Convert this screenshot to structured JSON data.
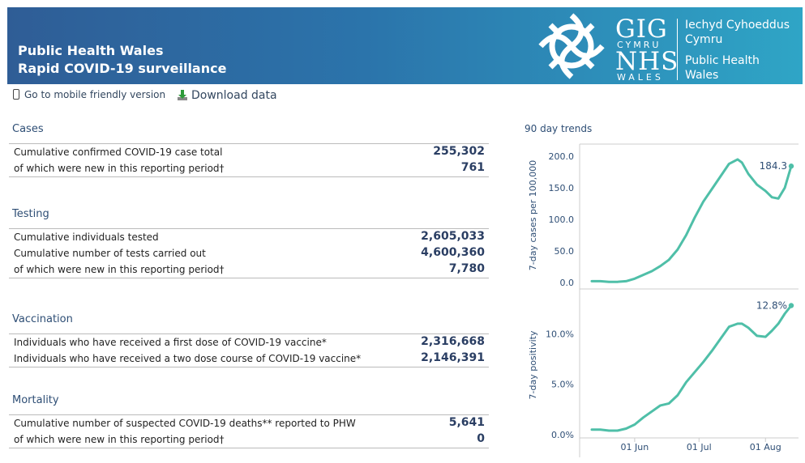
{
  "header": {
    "line1": "Public Health Wales",
    "line2": "Rapid COVID-19 surveillance",
    "logo": {
      "gig": "GIG",
      "cymru": "CYMRU",
      "nhs": "NHS",
      "wales": "WALES",
      "org_lines": [
        "Iechyd Cyhoeddus",
        "Cymru",
        "Public Health",
        "Wales"
      ]
    },
    "colors": {
      "banner_start": "#2f5d96",
      "banner_end": "#2fa5c6"
    }
  },
  "toolbar": {
    "mobile_link": "Go to mobile friendly version",
    "download_link": "Download data",
    "icons": [
      "mobile-phone-icon",
      "download-icon"
    ]
  },
  "sections": [
    {
      "title": "Cases",
      "rows": [
        {
          "label": "Cumulative confirmed COVID-19 case total",
          "value": "255,302"
        },
        {
          "label": "of which were new in this reporting period†",
          "value": "761"
        }
      ]
    },
    {
      "title": "Testing",
      "rows": [
        {
          "label": "Cumulative individuals tested",
          "value": "2,605,033"
        },
        {
          "label": "Cumulative number of tests carried out",
          "value": "4,600,360"
        },
        {
          "label": "of which were new in this reporting period†",
          "value": "7,780"
        }
      ]
    },
    {
      "title": "Vaccination",
      "rows": [
        {
          "label": "Individuals who have received a first dose of COVID-19 vaccine*",
          "value": "2,316,668"
        },
        {
          "label": "Individuals who have received a two dose course of COVID-19 vaccine*",
          "value": "2,146,391"
        }
      ]
    },
    {
      "title": "Mortality",
      "rows": [
        {
          "label": "Cumulative number of suspected COVID-19 deaths** reported to PHW",
          "value": "5,641"
        },
        {
          "label": "of which were new in this reporting period†",
          "value": "0"
        }
      ]
    }
  ],
  "trends": {
    "title": "90 day trends",
    "line_color": "#4fbfa8"
  },
  "chart_data": [
    {
      "type": "line",
      "ylabel": "7-day cases per 100,000",
      "yticks": [
        "0.0",
        "50.0",
        "100.0",
        "150.0",
        "200.0"
      ],
      "ylim": [
        0,
        200
      ],
      "end_label": "184.3",
      "x": [
        "2021-05-12",
        "2021-05-16",
        "2021-05-20",
        "2021-05-24",
        "2021-05-28",
        "2021-06-01",
        "2021-06-05",
        "2021-06-09",
        "2021-06-13",
        "2021-06-17",
        "2021-06-21",
        "2021-06-25",
        "2021-06-29",
        "2021-07-03",
        "2021-07-07",
        "2021-07-11",
        "2021-07-15",
        "2021-07-19",
        "2021-07-21",
        "2021-07-24",
        "2021-07-28",
        "2021-08-01",
        "2021-08-04",
        "2021-08-07",
        "2021-08-10",
        "2021-08-13"
      ],
      "y": [
        2,
        2,
        1,
        1,
        2,
        6,
        12,
        18,
        26,
        36,
        52,
        75,
        103,
        128,
        148,
        168,
        188,
        195,
        190,
        172,
        155,
        145,
        135,
        133,
        150,
        184.3
      ],
      "grid": false
    },
    {
      "type": "line",
      "ylabel": "7-day positivity",
      "yticks": [
        "0.0%",
        "5.0%",
        "10.0%"
      ],
      "ylim": [
        0,
        13.0
      ],
      "end_label": "12.8%",
      "x": [
        "2021-05-12",
        "2021-05-16",
        "2021-05-20",
        "2021-05-24",
        "2021-05-28",
        "2021-06-01",
        "2021-06-05",
        "2021-06-09",
        "2021-06-13",
        "2021-06-17",
        "2021-06-21",
        "2021-06-25",
        "2021-06-29",
        "2021-07-03",
        "2021-07-07",
        "2021-07-11",
        "2021-07-15",
        "2021-07-19",
        "2021-07-21",
        "2021-07-24",
        "2021-07-28",
        "2021-08-01",
        "2021-08-04",
        "2021-08-07",
        "2021-08-10",
        "2021-08-13"
      ],
      "y": [
        0.5,
        0.5,
        0.4,
        0.4,
        0.6,
        1.0,
        1.7,
        2.3,
        2.9,
        3.1,
        3.9,
        5.2,
        6.2,
        7.2,
        8.3,
        9.5,
        10.7,
        11.0,
        11.0,
        10.6,
        9.8,
        9.7,
        10.3,
        11.0,
        12.0,
        12.8
      ],
      "grid": false
    }
  ],
  "x_ticks": [
    "01 Jun",
    "01 Jul",
    "01 Aug"
  ]
}
